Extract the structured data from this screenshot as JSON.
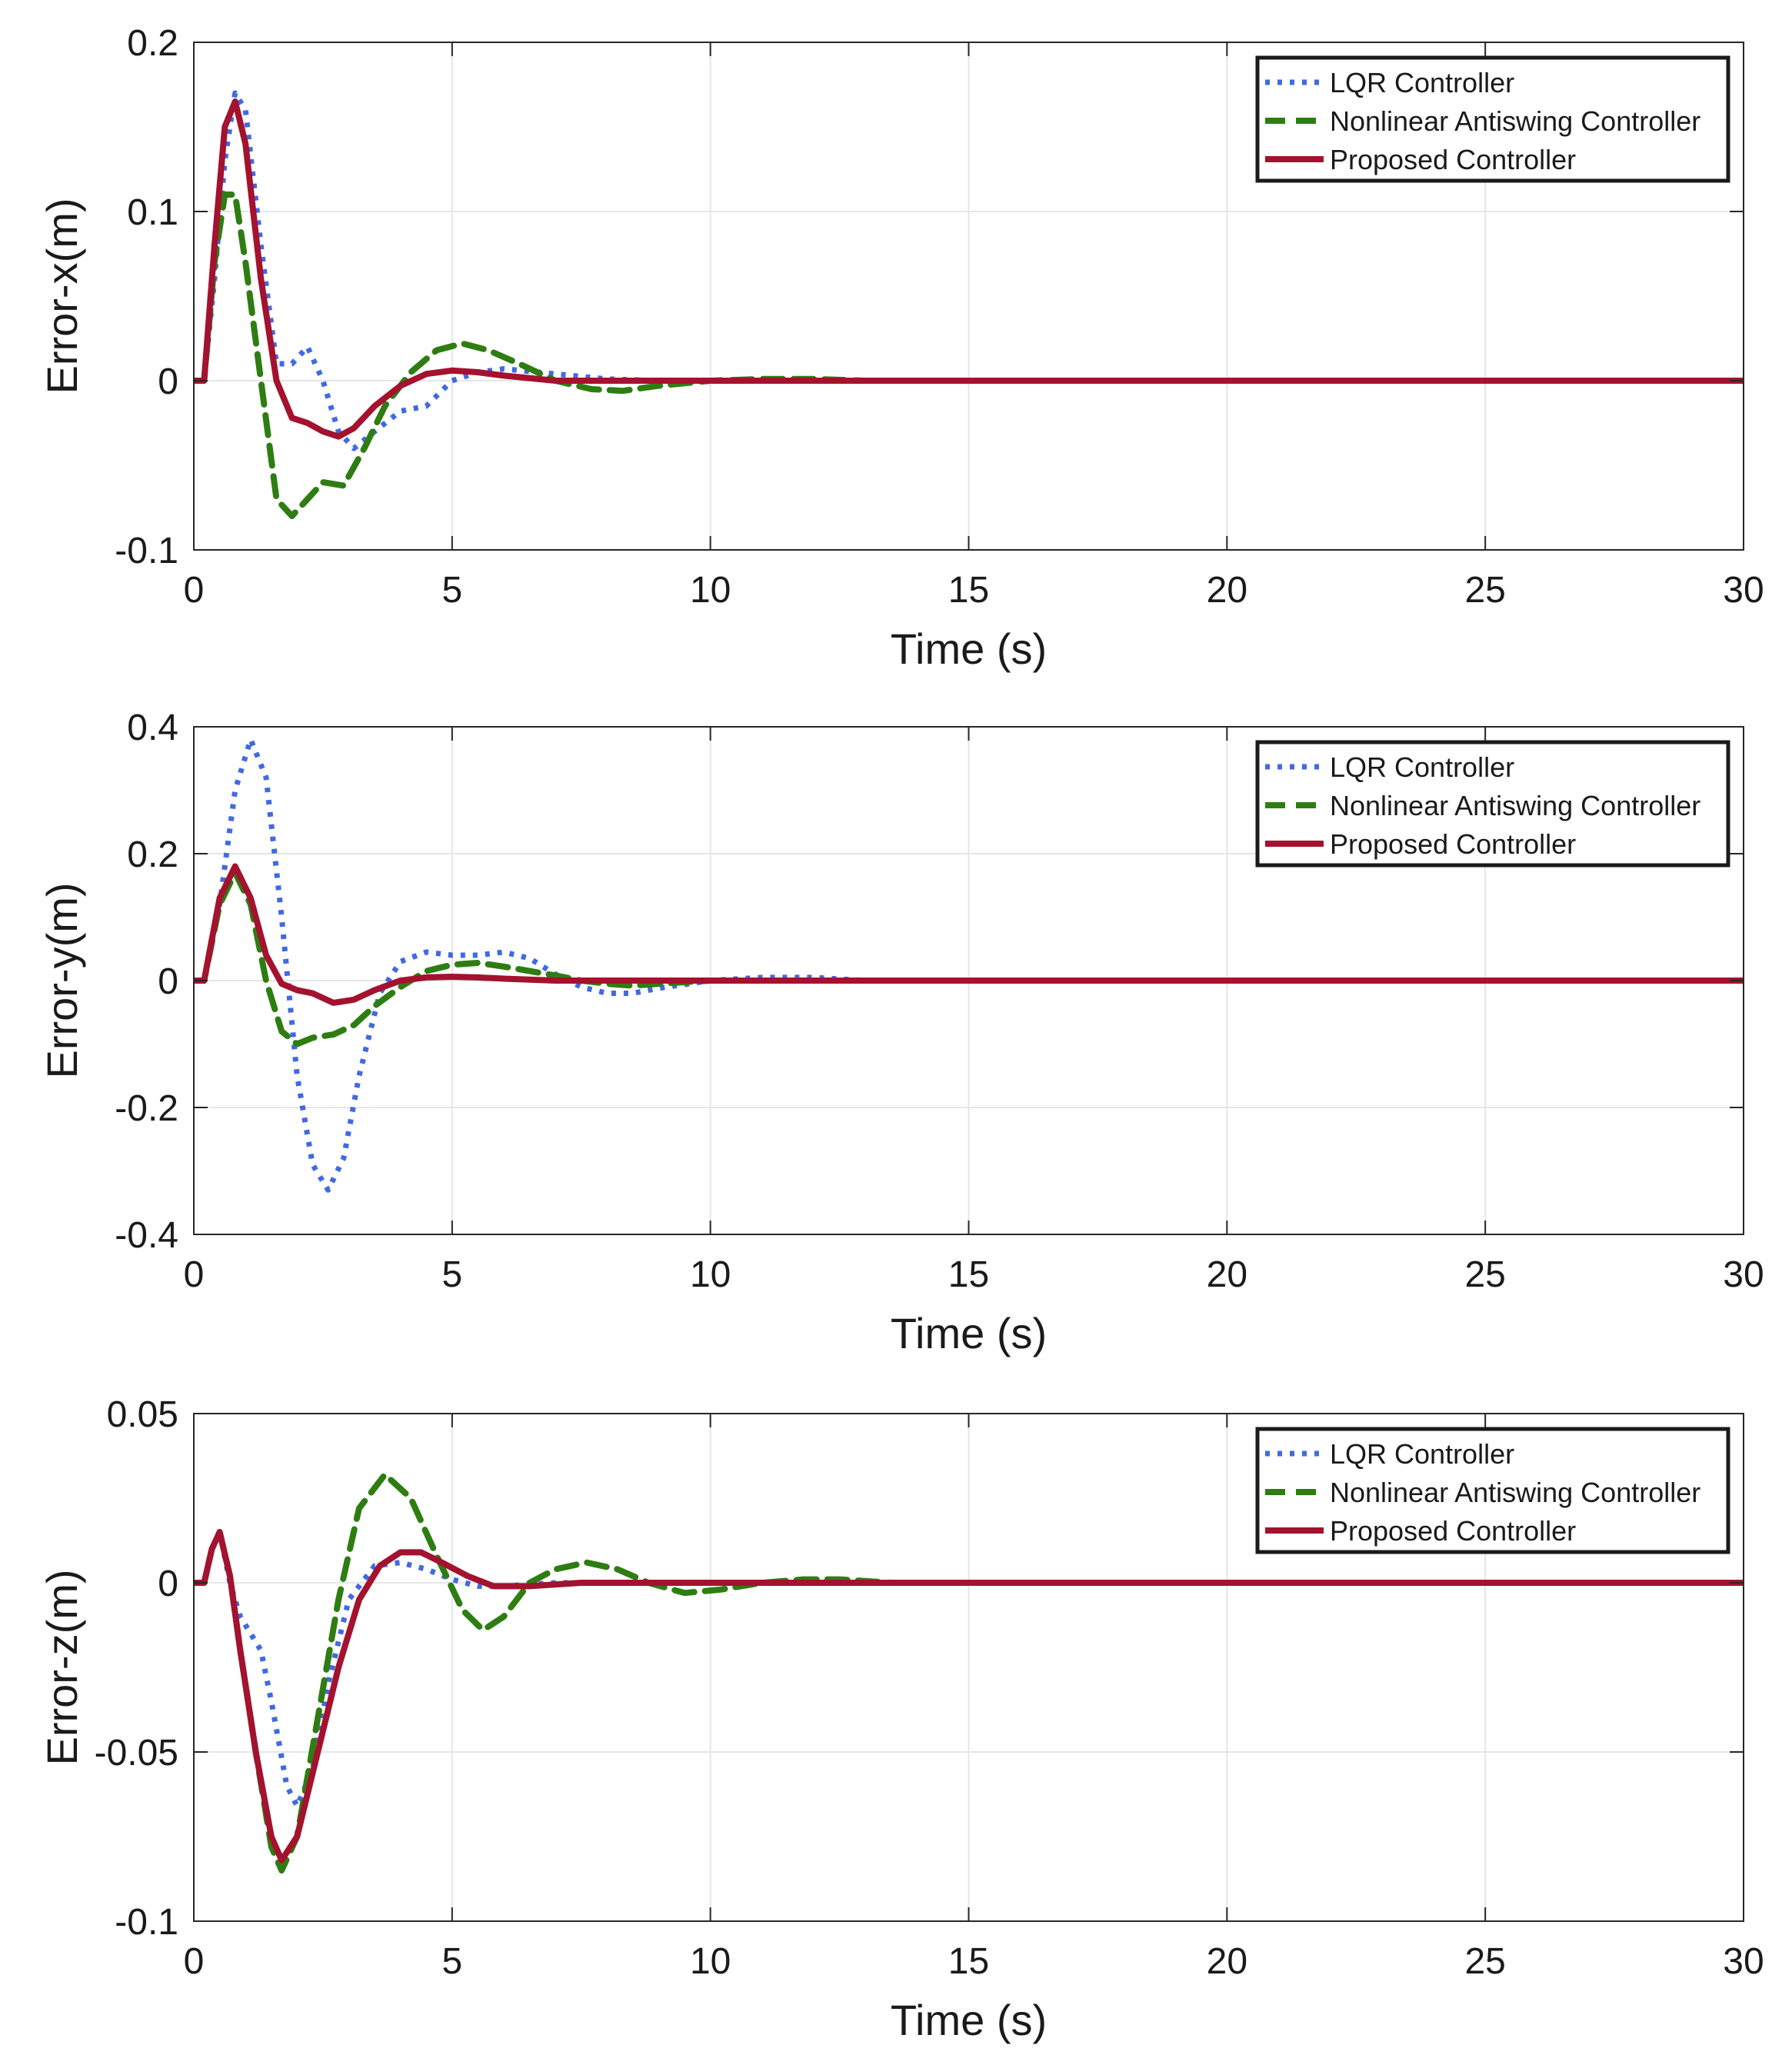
{
  "chart_data": [
    {
      "type": "line",
      "xlabel": "Time (s)",
      "ylabel": "Error-x(m)",
      "xlim": [
        0,
        30
      ],
      "ylim": [
        -0.1,
        0.2
      ],
      "xticks": [
        0,
        5,
        10,
        15,
        20,
        25,
        30
      ],
      "xtick_labels": [
        "0",
        "5",
        "10",
        "15",
        "20",
        "25",
        "30"
      ],
      "yticks": [
        -0.1,
        0,
        0.1,
        0.2
      ],
      "ytick_labels": [
        "-0.1",
        "0",
        "0.1",
        "0.2"
      ],
      "grid": true,
      "legend_position": "top-right",
      "series": [
        {
          "name": "LQR Controller",
          "style": "dotted",
          "color": "#4169E1",
          "x": [
            0,
            0.2,
            0.4,
            0.6,
            0.8,
            1.0,
            1.3,
            1.6,
            1.9,
            2.2,
            2.5,
            2.8,
            3.1,
            3.5,
            4.0,
            4.5,
            5.0,
            5.5,
            6.0,
            7.0,
            8.0,
            9.0,
            10.0,
            30.0
          ],
          "y": [
            0,
            0,
            0.06,
            0.13,
            0.17,
            0.16,
            0.08,
            0.01,
            0.01,
            0.02,
            0.0,
            -0.03,
            -0.04,
            -0.03,
            -0.018,
            -0.015,
            0.0,
            0.005,
            0.007,
            0.004,
            0.001,
            0.0,
            0.0,
            0.0
          ]
        },
        {
          "name": "Nonlinear Antiswing Controller",
          "style": "dashed",
          "color": "#2E7D12",
          "x": [
            0,
            0.2,
            0.4,
            0.6,
            0.8,
            1.0,
            1.3,
            1.6,
            1.9,
            2.2,
            2.5,
            2.9,
            3.3,
            3.7,
            4.2,
            4.7,
            5.2,
            5.7,
            6.3,
            7.0,
            7.7,
            8.3,
            9.0,
            10.0,
            11.0,
            12.0,
            13.0,
            30.0
          ],
          "y": [
            0,
            0,
            0.07,
            0.11,
            0.11,
            0.07,
            0.0,
            -0.07,
            -0.08,
            -0.07,
            -0.06,
            -0.062,
            -0.04,
            -0.015,
            0.005,
            0.018,
            0.022,
            0.018,
            0.01,
            0.0,
            -0.005,
            -0.006,
            -0.003,
            0.0,
            0.001,
            0.001,
            0.0,
            0.0
          ]
        },
        {
          "name": "Proposed Controller",
          "style": "solid",
          "color": "#A3122E",
          "x": [
            0,
            0.2,
            0.4,
            0.6,
            0.8,
            1.0,
            1.3,
            1.6,
            1.9,
            2.2,
            2.5,
            2.8,
            3.1,
            3.5,
            4.0,
            4.5,
            5.0,
            5.5,
            6.0,
            7.0,
            8.0,
            30.0
          ],
          "y": [
            0,
            0,
            0.08,
            0.15,
            0.165,
            0.14,
            0.06,
            0.0,
            -0.022,
            -0.025,
            -0.03,
            -0.033,
            -0.028,
            -0.015,
            -0.003,
            0.004,
            0.006,
            0.005,
            0.003,
            0.0,
            0.0,
            0.0
          ]
        }
      ]
    },
    {
      "type": "line",
      "xlabel": "Time (s)",
      "ylabel": "Error-y(m)",
      "xlim": [
        0,
        30
      ],
      "ylim": [
        -0.4,
        0.4
      ],
      "xticks": [
        0,
        5,
        10,
        15,
        20,
        25,
        30
      ],
      "xtick_labels": [
        "0",
        "5",
        "10",
        "15",
        "20",
        "25",
        "30"
      ],
      "yticks": [
        -0.4,
        -0.2,
        0,
        0.2,
        0.4
      ],
      "ytick_labels": [
        "-0.4",
        "-0.2",
        "0",
        "0.2",
        "0.4"
      ],
      "grid": true,
      "legend_position": "top-right",
      "series": [
        {
          "name": "LQR Controller",
          "style": "dotted",
          "color": "#4169E1",
          "x": [
            0,
            0.2,
            0.5,
            0.8,
            1.1,
            1.4,
            1.7,
            2.0,
            2.3,
            2.6,
            2.9,
            3.2,
            3.6,
            4.0,
            4.5,
            5.0,
            5.5,
            6.0,
            6.5,
            7.0,
            7.5,
            8.0,
            8.5,
            9.0,
            10.0,
            11.0,
            12.0,
            13.0,
            30.0
          ],
          "y": [
            0,
            0,
            0.12,
            0.3,
            0.38,
            0.32,
            0.1,
            -0.15,
            -0.29,
            -0.33,
            -0.28,
            -0.15,
            -0.02,
            0.03,
            0.045,
            0.04,
            0.04,
            0.045,
            0.035,
            0.01,
            -0.01,
            -0.02,
            -0.02,
            -0.012,
            0.0,
            0.005,
            0.005,
            0.0,
            0.0
          ]
        },
        {
          "name": "Nonlinear Antiswing Controller",
          "style": "dashed",
          "color": "#2E7D12",
          "x": [
            0,
            0.2,
            0.5,
            0.8,
            1.1,
            1.4,
            1.7,
            2.0,
            2.3,
            2.7,
            3.1,
            3.5,
            4.0,
            4.5,
            5.0,
            5.5,
            6.0,
            6.5,
            7.0,
            7.5,
            8.0,
            8.5,
            9.0,
            10.0,
            30.0
          ],
          "y": [
            0,
            0,
            0.12,
            0.17,
            0.12,
            0.0,
            -0.08,
            -0.1,
            -0.09,
            -0.085,
            -0.07,
            -0.04,
            -0.01,
            0.015,
            0.025,
            0.028,
            0.022,
            0.015,
            0.008,
            0.0,
            -0.005,
            -0.008,
            -0.005,
            0.0,
            0.0
          ]
        },
        {
          "name": "Proposed Controller",
          "style": "solid",
          "color": "#A3122E",
          "x": [
            0,
            0.2,
            0.5,
            0.8,
            1.1,
            1.4,
            1.7,
            2.0,
            2.3,
            2.7,
            3.1,
            3.5,
            4.0,
            4.5,
            5.0,
            5.5,
            6.0,
            7.0,
            8.0,
            30.0
          ],
          "y": [
            0,
            0,
            0.13,
            0.18,
            0.13,
            0.04,
            -0.005,
            -0.015,
            -0.02,
            -0.035,
            -0.03,
            -0.015,
            0.0,
            0.005,
            0.006,
            0.005,
            0.003,
            0.0,
            0.0,
            0.0
          ]
        }
      ]
    },
    {
      "type": "line",
      "xlabel": "Time (s)",
      "ylabel": "Error-z(m)",
      "xlim": [
        0,
        30
      ],
      "ylim": [
        -0.1,
        0.05
      ],
      "xticks": [
        0,
        5,
        10,
        15,
        20,
        25,
        30
      ],
      "xtick_labels": [
        "0",
        "5",
        "10",
        "15",
        "20",
        "25",
        "30"
      ],
      "yticks": [
        -0.1,
        -0.05,
        0,
        0.05
      ],
      "ytick_labels": [
        "-0.1",
        "-0.05",
        "0",
        "0.05"
      ],
      "grid": true,
      "legend_position": "top-right",
      "series": [
        {
          "name": "LQR Controller",
          "style": "dotted",
          "color": "#4169E1",
          "x": [
            0,
            0.2,
            0.35,
            0.5,
            0.7,
            0.9,
            1.1,
            1.3,
            1.5,
            1.8,
            2.0,
            2.3,
            2.6,
            3.0,
            3.5,
            4.0,
            4.5,
            5.0,
            5.5,
            6.0,
            7.0,
            8.0,
            30.0
          ],
          "y": [
            0,
            0,
            0.01,
            0.015,
            0.0,
            -0.01,
            -0.015,
            -0.02,
            -0.035,
            -0.06,
            -0.066,
            -0.055,
            -0.03,
            -0.005,
            0.005,
            0.006,
            0.004,
            0.001,
            -0.001,
            -0.001,
            0.0,
            0.0,
            0.0
          ]
        },
        {
          "name": "Nonlinear Antiswing Controller",
          "style": "dashed",
          "color": "#2E7D12",
          "x": [
            0,
            0.2,
            0.35,
            0.5,
            0.7,
            0.9,
            1.2,
            1.5,
            1.7,
            2.0,
            2.4,
            2.8,
            3.2,
            3.7,
            4.2,
            4.7,
            5.2,
            5.6,
            6.0,
            6.5,
            7.0,
            7.6,
            8.2,
            8.8,
            9.5,
            10.2,
            11.0,
            11.8,
            12.5,
            13.5,
            30.0
          ],
          "y": [
            0,
            0,
            0.01,
            0.015,
            0.002,
            -0.02,
            -0.05,
            -0.078,
            -0.085,
            -0.075,
            -0.04,
            -0.005,
            0.022,
            0.032,
            0.025,
            0.008,
            -0.008,
            -0.014,
            -0.01,
            0.0,
            0.004,
            0.006,
            0.004,
            0.0,
            -0.003,
            -0.002,
            0.0,
            0.001,
            0.001,
            0.0,
            0.0
          ]
        },
        {
          "name": "Proposed Controller",
          "style": "solid",
          "color": "#A3122E",
          "x": [
            0,
            0.2,
            0.35,
            0.5,
            0.7,
            0.9,
            1.2,
            1.5,
            1.7,
            2.0,
            2.4,
            2.8,
            3.2,
            3.6,
            4.0,
            4.4,
            4.8,
            5.3,
            5.8,
            6.5,
            7.5,
            8.5,
            9.5,
            30.0
          ],
          "y": [
            0,
            0,
            0.01,
            0.015,
            0.002,
            -0.02,
            -0.05,
            -0.075,
            -0.082,
            -0.075,
            -0.05,
            -0.025,
            -0.005,
            0.005,
            0.009,
            0.009,
            0.006,
            0.002,
            -0.001,
            -0.001,
            0.0,
            0.0,
            0.0,
            0.0
          ]
        }
      ]
    }
  ]
}
